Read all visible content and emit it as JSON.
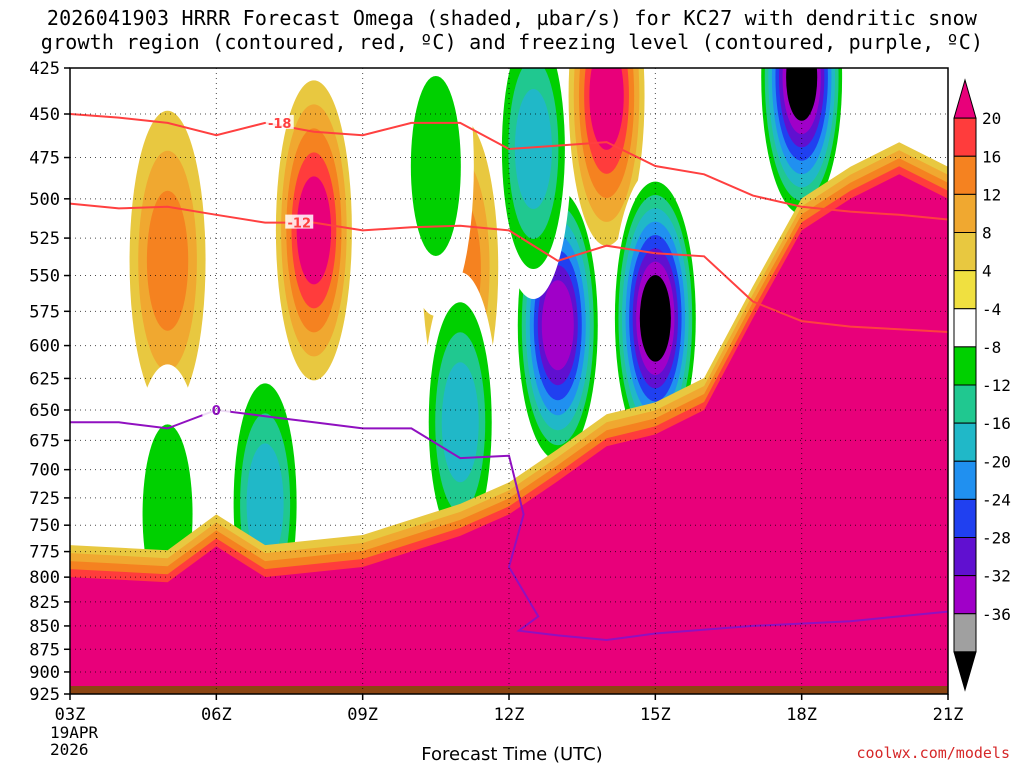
{
  "title_lines": [
    "2026041903 HRRR Forecast Omega (shaded, µbar/s) for KC27 with dendritic snow",
    "growth region (contoured, red, ºC) and freezing level (contoured, purple, ºC)"
  ],
  "credit": "coolwx.com/models",
  "chart_data": {
    "type": "heatmap",
    "xlabel": "Forecast Time (UTC)",
    "ylabel": "",
    "x_ticks": [
      "03Z",
      "06Z",
      "09Z",
      "12Z",
      "15Z",
      "18Z",
      "21Z"
    ],
    "x_tick_hours": [
      3,
      6,
      9,
      12,
      15,
      18,
      21
    ],
    "x_start_date": [
      "19APR",
      "2026"
    ],
    "y_ticks": [
      425,
      450,
      475,
      500,
      525,
      550,
      575,
      600,
      625,
      650,
      675,
      700,
      725,
      750,
      775,
      800,
      825,
      850,
      875,
      900,
      925
    ],
    "ylim": [
      425,
      925
    ],
    "xlim": [
      3,
      21
    ],
    "y_scale": "log",
    "grid": true,
    "colorbar_levels": [
      20,
      16,
      12,
      8,
      4,
      -4,
      -8,
      -12,
      -16,
      -20,
      -24,
      -28,
      -32,
      -36
    ],
    "colorbar_colors": [
      "#e8007a",
      "#ff3c3c",
      "#f58220",
      "#f0a830",
      "#e8c840",
      "#f0e040",
      "#ffffff",
      "#00d000",
      "#20c890",
      "#20b8c8",
      "#2090f0",
      "#2040f0",
      "#6010d0",
      "#a000c8",
      "#a0a0a0",
      "#000000"
    ],
    "omega_blobs": [
      {
        "x": 5.0,
        "p": 540,
        "value": 12
      },
      {
        "x": 8.0,
        "p": 520,
        "value": 20
      },
      {
        "x": 7.0,
        "p": 730,
        "value": -16
      },
      {
        "x": 5.0,
        "p": 740,
        "value": -8
      },
      {
        "x": 11.0,
        "p": 545,
        "value": 12
      },
      {
        "x": 10.5,
        "p": 480,
        "value": -8
      },
      {
        "x": 11.0,
        "p": 660,
        "value": -16
      },
      {
        "x": 13.0,
        "p": 585,
        "value": -32
      },
      {
        "x": 12.5,
        "p": 470,
        "value": -16
      },
      {
        "x": 14.0,
        "p": 440,
        "value": 20
      },
      {
        "x": 15.0,
        "p": 580,
        "value": -36
      },
      {
        "x": 18.0,
        "p": 430,
        "value": -36
      }
    ],
    "surface_high_omega_top": [
      {
        "x": 3.0,
        "p": 800
      },
      {
        "x": 5.0,
        "p": 805
      },
      {
        "x": 6.0,
        "p": 770
      },
      {
        "x": 7.0,
        "p": 800
      },
      {
        "x": 9.0,
        "p": 790
      },
      {
        "x": 11.0,
        "p": 760
      },
      {
        "x": 12.0,
        "p": 740
      },
      {
        "x": 13.0,
        "p": 710
      },
      {
        "x": 14.0,
        "p": 680
      },
      {
        "x": 15.0,
        "p": 670
      },
      {
        "x": 16.0,
        "p": 650
      },
      {
        "x": 17.0,
        "p": 580
      },
      {
        "x": 18.0,
        "p": 520
      },
      {
        "x": 19.0,
        "p": 500
      },
      {
        "x": 20.0,
        "p": 485
      },
      {
        "x": 21.0,
        "p": 500
      }
    ],
    "series": [
      {
        "name": "-18",
        "color": "#ff4040",
        "label_at": 7.3,
        "x": [
          3,
          4,
          5,
          6,
          7,
          8,
          9,
          10,
          11,
          12,
          13,
          14,
          15,
          16,
          17,
          18,
          19,
          20,
          21
        ],
        "p": [
          450,
          452,
          455,
          462,
          455,
          460,
          462,
          455,
          455,
          470,
          468,
          466,
          480,
          485,
          498,
          505,
          508,
          510,
          513
        ]
      },
      {
        "name": "-12",
        "color": "#ff4040",
        "label_at": 7.7,
        "x": [
          3,
          4,
          5,
          6,
          7,
          8,
          9,
          10,
          11,
          12,
          13,
          14,
          15,
          16,
          17,
          18,
          19,
          20,
          21
        ],
        "p": [
          503,
          506,
          505,
          510,
          515,
          515,
          520,
          518,
          517,
          520,
          540,
          530,
          535,
          537,
          568,
          582,
          586,
          588,
          590
        ]
      },
      {
        "name": "0",
        "color": "#9010c0",
        "label_at": 6.0,
        "x": [
          3,
          4,
          5,
          6,
          7,
          8,
          9,
          10,
          11,
          12,
          12.3,
          12.0,
          12.6,
          12.2,
          13,
          14,
          15,
          17,
          19,
          21
        ],
        "p": [
          660,
          660,
          665,
          650,
          655,
          660,
          665,
          665,
          690,
          688,
          740,
          790,
          840,
          855,
          860,
          865,
          858,
          850,
          845,
          835
        ]
      }
    ]
  }
}
